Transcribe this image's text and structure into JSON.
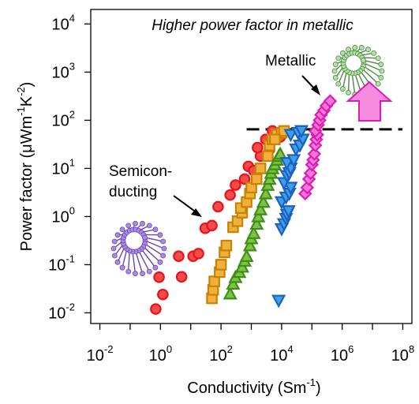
{
  "chart_data": {
    "type": "scatter",
    "title": "Higher power factor in metallic",
    "xlabel": {
      "base": "Conductivity (Sm",
      "sup": "-1",
      "tail": ")"
    },
    "ylabel": {
      "base": "Power factor (μWm",
      "sup1": "-1",
      "mid": "K",
      "sup2": "-2",
      "tail": ")"
    },
    "x_scale": "log",
    "y_scale": "log",
    "xlim": [
      0.005,
      200000000.0
    ],
    "ylim": [
      0.006,
      20000
    ],
    "x_ticks": [
      {
        "base": "10",
        "exp": "-2",
        "value": 0.01
      },
      {
        "base": "10",
        "exp": "0",
        "value": 1
      },
      {
        "base": "10",
        "exp": "2",
        "value": 100
      },
      {
        "base": "10",
        "exp": "4",
        "value": 10000
      },
      {
        "base": "10",
        "exp": "6",
        "value": 1000000
      },
      {
        "base": "10",
        "exp": "8",
        "value": 100000000
      }
    ],
    "y_ticks": [
      {
        "base": "10",
        "exp": "-2",
        "value": 0.01
      },
      {
        "base": "10",
        "exp": "-1",
        "value": 0.1
      },
      {
        "base": "10",
        "exp": "0",
        "value": 1
      },
      {
        "base": "10",
        "exp": "1",
        "value": 10
      },
      {
        "base": "10",
        "exp": "2",
        "value": 100
      },
      {
        "base": "10",
        "exp": "3",
        "value": 1000
      },
      {
        "base": "10",
        "exp": "4",
        "value": 10000
      }
    ],
    "threshold_y": 65,
    "threshold_x_range": [
      700,
      120000000
    ],
    "annotations": {
      "metallic": "Metallic",
      "semicon_line1": "Semicon-",
      "semicon_line2": "ducting"
    },
    "series": [
      {
        "marker": "circle",
        "fill": "#f24b4b",
        "stroke": "#e8141b",
        "points": [
          [
            0.7,
            0.012
          ],
          [
            1.2,
            0.024
          ],
          [
            0.9,
            0.055
          ],
          [
            5,
            0.056
          ],
          [
            4,
            0.15
          ],
          [
            12,
            0.15
          ],
          [
            18,
            0.17
          ],
          [
            30,
            0.57
          ],
          [
            50,
            0.65
          ],
          [
            80,
            1.6
          ],
          [
            200,
            2.8
          ],
          [
            300,
            4.5
          ],
          [
            600,
            6
          ],
          [
            800,
            11
          ],
          [
            1200,
            9
          ],
          [
            2000,
            18
          ],
          [
            1600,
            27
          ],
          [
            3000,
            40
          ],
          [
            4000,
            25
          ],
          [
            5000,
            60
          ],
          [
            7000,
            50
          ],
          [
            9000,
            45
          ]
        ]
      },
      {
        "marker": "square",
        "fill": "#f0b040",
        "stroke": "#c88400",
        "points": [
          [
            50,
            0.02
          ],
          [
            55,
            0.03
          ],
          [
            60,
            0.045
          ],
          [
            90,
            0.07
          ],
          [
            100,
            0.1
          ],
          [
            130,
            0.18
          ],
          [
            150,
            0.25
          ],
          [
            250,
            0.6
          ],
          [
            350,
            0.8
          ],
          [
            500,
            1.2
          ],
          [
            450,
            1.5
          ],
          [
            700,
            2
          ],
          [
            900,
            3
          ],
          [
            1000,
            4
          ],
          [
            1500,
            6
          ],
          [
            2000,
            10
          ],
          [
            3500,
            18
          ],
          [
            4000,
            30
          ],
          [
            5000,
            40
          ],
          [
            7000,
            50
          ],
          [
            10000,
            55
          ],
          [
            12000,
            60
          ],
          [
            6000,
            40
          ]
        ]
      },
      {
        "marker": "triangle-up",
        "fill": "#7fc241",
        "stroke": "#3e8f1a",
        "points": [
          [
            200,
            0.025
          ],
          [
            250,
            0.04
          ],
          [
            300,
            0.055
          ],
          [
            400,
            0.07
          ],
          [
            500,
            0.09
          ],
          [
            600,
            0.12
          ],
          [
            700,
            0.15
          ],
          [
            900,
            0.25
          ],
          [
            1000,
            0.35
          ],
          [
            1200,
            0.45
          ],
          [
            1500,
            0.7
          ],
          [
            1700,
            1
          ],
          [
            2000,
            1.4
          ],
          [
            2500,
            2
          ],
          [
            3000,
            3
          ],
          [
            3500,
            4.5
          ],
          [
            4000,
            6
          ],
          [
            4500,
            8
          ],
          [
            5000,
            10
          ],
          [
            6000,
            12
          ],
          [
            7000,
            15
          ],
          [
            8000,
            18
          ],
          [
            9000,
            20
          ]
        ]
      },
      {
        "marker": "triangle-down",
        "fill": "#3aa0e8",
        "stroke": "#1f5fbf",
        "points": [
          [
            8000,
            0.018
          ],
          [
            10000,
            0.55
          ],
          [
            12000,
            0.7
          ],
          [
            14000,
            0.9
          ],
          [
            15000,
            1.1
          ],
          [
            17000,
            1.3
          ],
          [
            10000,
            2
          ],
          [
            14000,
            2.5
          ],
          [
            18000,
            3
          ],
          [
            20000,
            4
          ],
          [
            12000,
            5
          ],
          [
            15000,
            7
          ],
          [
            18000,
            8
          ],
          [
            20000,
            10
          ],
          [
            15000,
            13
          ],
          [
            25000,
            15
          ],
          [
            30000,
            25
          ],
          [
            40000,
            30
          ],
          [
            50000,
            40
          ],
          [
            20000,
            50
          ],
          [
            35000,
            55
          ],
          [
            45000,
            60
          ]
        ]
      },
      {
        "marker": "diamond",
        "fill": "#f57ad8",
        "stroke": "#e01ab5",
        "points": [
          [
            60000,
            3
          ],
          [
            70000,
            4
          ],
          [
            80000,
            6
          ],
          [
            90000,
            8
          ],
          [
            100000,
            12
          ],
          [
            110000,
            15
          ],
          [
            120000,
            20
          ],
          [
            130000,
            30
          ],
          [
            140000,
            40
          ],
          [
            150000,
            50
          ],
          [
            130000,
            60
          ],
          [
            160000,
            80
          ],
          [
            180000,
            100
          ],
          [
            200000,
            130
          ],
          [
            250000,
            160
          ],
          [
            300000,
            200
          ],
          [
            400000,
            250
          ]
        ]
      }
    ]
  }
}
